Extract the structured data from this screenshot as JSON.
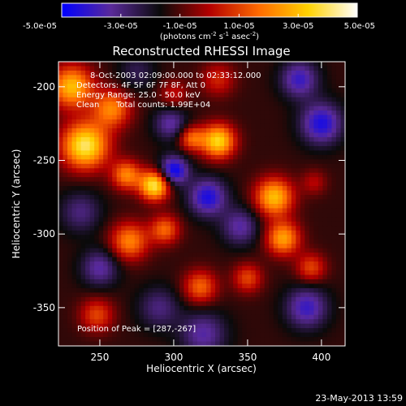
{
  "colors": {
    "background": "#000000",
    "foreground": "#ffffff",
    "colormap_stops": [
      "#0000ff",
      "#5a2a9a",
      "#0a0a0a",
      "#b40000",
      "#ff6a00",
      "#ffd200",
      "#ffffff"
    ]
  },
  "colorbar": {
    "ticks": [
      "-5.0e-05",
      "-3.0e-05",
      "-1.0e-05",
      "1.0e-05",
      "3.0e-05",
      "5.0e-05"
    ],
    "tick_values": [
      -5e-05,
      -3e-05,
      -1e-05,
      1e-05,
      3e-05,
      5e-05
    ],
    "range": [
      -5e-05,
      5e-05
    ],
    "units_prefix": "(photons cm",
    "units_exp1": "-2",
    "units_mid": " s",
    "units_exp2": "-1",
    "units_mid2": " asec",
    "units_exp3": "-2",
    "units_suffix": ")"
  },
  "chart_data": {
    "type": "heatmap",
    "title": "Reconstructed RHESSI Image",
    "xlabel": "Heliocentric X (arcsec)",
    "ylabel": "Heliocentric Y (arcsec)",
    "xlim": [
      222,
      416
    ],
    "ylim": [
      -376,
      -183
    ],
    "xticks": [
      250,
      300,
      350,
      400
    ],
    "yticks": [
      -200,
      -250,
      -300,
      -350
    ],
    "annotations": [
      "8-Oct-2003 02:09:00.000 to 02:33:12.000",
      "Detectors: 4F 5F 6F 7F 8F, Att 0",
      "Energy Range: 25.0 - 50.0 keV",
      "Clean",
      "Total counts: 1.99E+04"
    ],
    "peak_label": "Position of Peak = [287,-267]",
    "peak": [
      287,
      -267
    ],
    "hotspots": [
      {
        "x": 240,
        "y": -240,
        "value": 5e-05,
        "sigma": 11
      },
      {
        "x": 231,
        "y": -200,
        "value": 4e-05,
        "sigma": 10
      },
      {
        "x": 258,
        "y": -215,
        "value": 3e-05,
        "sigma": 9
      },
      {
        "x": 287,
        "y": -267,
        "value": 5e-05,
        "sigma": 7
      },
      {
        "x": 268,
        "y": -260,
        "value": 3e-05,
        "sigma": 7
      },
      {
        "x": 330,
        "y": -237,
        "value": 4.5e-05,
        "sigma": 8
      },
      {
        "x": 312,
        "y": -235,
        "value": 2.5e-05,
        "sigma": 6
      },
      {
        "x": 368,
        "y": -275,
        "value": 4e-05,
        "sigma": 9
      },
      {
        "x": 374,
        "y": -303,
        "value": 3.5e-05,
        "sigma": 8
      },
      {
        "x": 270,
        "y": -305,
        "value": 3e-05,
        "sigma": 9
      },
      {
        "x": 294,
        "y": -297,
        "value": 2.5e-05,
        "sigma": 7
      },
      {
        "x": 248,
        "y": -355,
        "value": 2e-05,
        "sigma": 8
      },
      {
        "x": 318,
        "y": -336,
        "value": 2.5e-05,
        "sigma": 8
      },
      {
        "x": 350,
        "y": -330,
        "value": 2e-05,
        "sigma": 7
      },
      {
        "x": 393,
        "y": -323,
        "value": 2e-05,
        "sigma": 7
      },
      {
        "x": 330,
        "y": -195,
        "value": 1.5e-05,
        "sigma": 8
      },
      {
        "x": 300,
        "y": -205,
        "value": 1.2e-05,
        "sigma": 7
      },
      {
        "x": 395,
        "y": -265,
        "value": 1e-05,
        "sigma": 6
      },
      {
        "x": 300,
        "y": -257,
        "value": -4e-05,
        "sigma": 7
      },
      {
        "x": 323,
        "y": -275,
        "value": -3.5e-05,
        "sigma": 9
      },
      {
        "x": 298,
        "y": -225,
        "value": -2.5e-05,
        "sigma": 8
      },
      {
        "x": 345,
        "y": -295,
        "value": -2.5e-05,
        "sigma": 9
      },
      {
        "x": 400,
        "y": -225,
        "value": -3.5e-05,
        "sigma": 10
      },
      {
        "x": 385,
        "y": -195,
        "value": -3e-05,
        "sigma": 9
      },
      {
        "x": 390,
        "y": -350,
        "value": -3e-05,
        "sigma": 10
      },
      {
        "x": 320,
        "y": -368,
        "value": -2.5e-05,
        "sigma": 11
      },
      {
        "x": 237,
        "y": -285,
        "value": -2e-05,
        "sigma": 10
      },
      {
        "x": 250,
        "y": -323,
        "value": -2.5e-05,
        "sigma": 9
      },
      {
        "x": 290,
        "y": -350,
        "value": -2e-05,
        "sigma": 10
      },
      {
        "x": 275,
        "y": -190,
        "value": -1.5e-05,
        "sigma": 9
      }
    ]
  },
  "footer": {
    "date": "23-May-2013 13:59"
  }
}
